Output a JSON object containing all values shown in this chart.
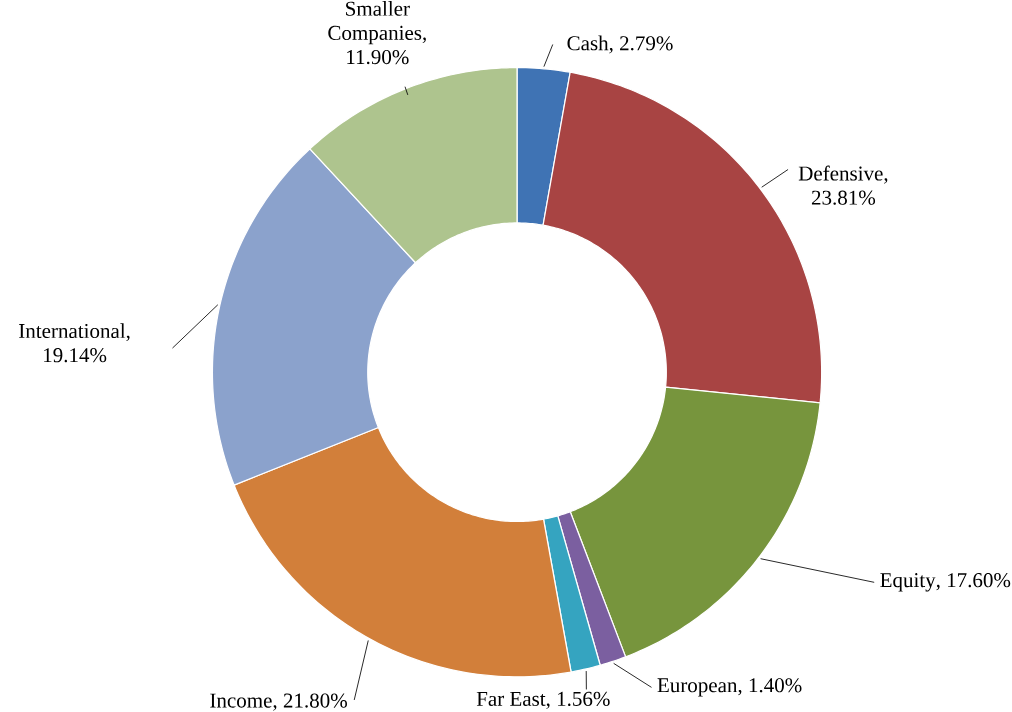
{
  "chart_data": {
    "type": "donut",
    "categories": [
      "Cash",
      "Defensive",
      "Equity",
      "European",
      "Far East",
      "Income",
      "International",
      "Smaller Companies"
    ],
    "values": [
      2.79,
      23.81,
      17.6,
      1.4,
      1.56,
      21.8,
      19.14,
      11.9
    ],
    "value_labels": [
      ", 2.79%",
      ", 23.81%",
      ", 17.60%",
      ", 1.40%",
      ", 1.56%",
      ", 21.80%",
      ", 19.14%",
      ", 11.90%"
    ],
    "colors": [
      "#3f73b4",
      "#a84443",
      "#77953d",
      "#7b5fa0",
      "#35a4c0",
      "#d27f3a",
      "#8ba2cc",
      "#aec48e"
    ]
  }
}
